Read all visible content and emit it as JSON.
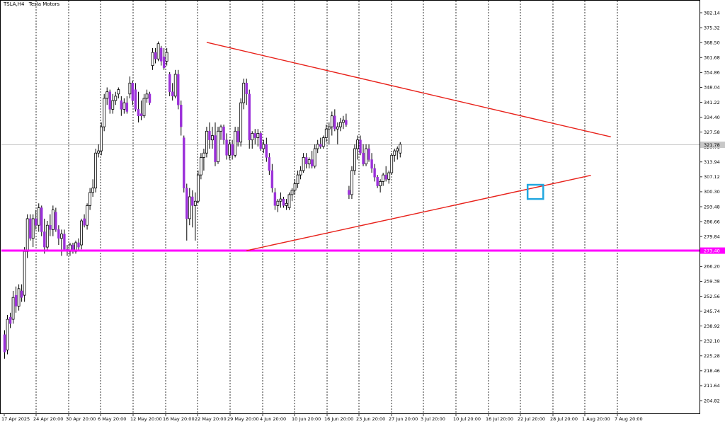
{
  "window": {
    "symbol": "TSLA,H4",
    "name": "Tesla Motors"
  },
  "colors": {
    "background": "#ffffff",
    "bull_body": "#ffffff",
    "bear_body": "#9b30d9",
    "wick": "#000000",
    "grid": "#000000",
    "trendline": "#e8211a",
    "support_line": "#ff00ff",
    "marker_box": "#22a7e0",
    "current_price_line": "#c0c0c0"
  },
  "chart_data": {
    "type": "candlestick",
    "title": "TSLA,H4  Tesla Motors",
    "x_tick_labels": [
      "17 Apr 2025",
      "24 Apr 20:00",
      "30 Apr 20:00",
      "6 May 20:00",
      "12 May 20:00",
      "16 May 20:00",
      "22 May 20:00",
      "29 May 20:00",
      "4 Jun 20:00",
      "10 Jun 20:00",
      "16 Jun 20:00",
      "23 Jun 20:00",
      "27 Jun 20:00",
      "3 Jul 20:00",
      "10 Jul 20:00",
      "16 Jul 20:00",
      "22 Jul 20:00",
      "28 Jul 20:00",
      "1 Aug 20:00",
      "7 Aug 20:00"
    ],
    "y_tick_labels": [
      "382.14",
      "375.32",
      "368.50",
      "361.68",
      "354.86",
      "348.04",
      "341.22",
      "334.40",
      "327.58",
      "320.76",
      "313.94",
      "307.12",
      "300.30",
      "293.48",
      "286.66",
      "279.84",
      "273.40",
      "266.20",
      "259.38",
      "252.56",
      "245.74",
      "238.92",
      "232.10",
      "225.28",
      "218.46",
      "211.64",
      "204.82"
    ],
    "ylim": [
      198.0,
      385.0
    ],
    "grid": "vertical-dotted",
    "current_price": 321.78,
    "current_price_label": "321.78",
    "support_level": 273.4,
    "support_label": "273.40",
    "candles": [
      {
        "o": 235,
        "h": 237,
        "l": 224,
        "c": 227
      },
      {
        "o": 228,
        "h": 244,
        "l": 226,
        "c": 242
      },
      {
        "o": 243,
        "h": 245,
        "l": 238,
        "c": 240
      },
      {
        "o": 242,
        "h": 255,
        "l": 240,
        "c": 252
      },
      {
        "o": 253,
        "h": 257,
        "l": 245,
        "c": 248
      },
      {
        "o": 248,
        "h": 258,
        "l": 246,
        "c": 256
      },
      {
        "o": 255,
        "h": 258,
        "l": 250,
        "c": 252
      },
      {
        "o": 253,
        "h": 275,
        "l": 250,
        "c": 273
      },
      {
        "o": 273,
        "h": 290,
        "l": 270,
        "c": 288
      },
      {
        "o": 288,
        "h": 290,
        "l": 278,
        "c": 279
      },
      {
        "o": 279,
        "h": 290,
        "l": 275,
        "c": 288
      },
      {
        "o": 288,
        "h": 292,
        "l": 283,
        "c": 285
      },
      {
        "o": 285,
        "h": 295,
        "l": 282,
        "c": 293
      },
      {
        "o": 293,
        "h": 294,
        "l": 280,
        "c": 282
      },
      {
        "o": 282,
        "h": 288,
        "l": 272,
        "c": 275
      },
      {
        "o": 275,
        "h": 287,
        "l": 273,
        "c": 285
      },
      {
        "o": 285,
        "h": 290,
        "l": 280,
        "c": 283
      },
      {
        "o": 283,
        "h": 294,
        "l": 280,
        "c": 292
      },
      {
        "o": 291,
        "h": 293,
        "l": 282,
        "c": 283
      },
      {
        "o": 283,
        "h": 285,
        "l": 276,
        "c": 279
      },
      {
        "o": 279,
        "h": 283,
        "l": 271,
        "c": 281
      },
      {
        "o": 281,
        "h": 283,
        "l": 274,
        "c": 274
      },
      {
        "o": 274,
        "h": 276,
        "l": 271,
        "c": 273
      },
      {
        "o": 273,
        "h": 277,
        "l": 271,
        "c": 276
      },
      {
        "o": 276,
        "h": 277,
        "l": 272,
        "c": 273
      },
      {
        "o": 273,
        "h": 278,
        "l": 272,
        "c": 277
      },
      {
        "o": 277,
        "h": 279,
        "l": 273,
        "c": 275
      },
      {
        "o": 276,
        "h": 288,
        "l": 274,
        "c": 287
      },
      {
        "o": 288,
        "h": 290,
        "l": 284,
        "c": 285
      },
      {
        "o": 285,
        "h": 295,
        "l": 283,
        "c": 294
      },
      {
        "o": 294,
        "h": 302,
        "l": 292,
        "c": 300
      },
      {
        "o": 300,
        "h": 306,
        "l": 298,
        "c": 302
      },
      {
        "o": 302,
        "h": 320,
        "l": 300,
        "c": 318
      },
      {
        "o": 318,
        "h": 322,
        "l": 316,
        "c": 319
      },
      {
        "o": 319,
        "h": 332,
        "l": 317,
        "c": 330
      },
      {
        "o": 330,
        "h": 345,
        "l": 328,
        "c": 343
      },
      {
        "o": 343,
        "h": 348,
        "l": 340,
        "c": 346
      },
      {
        "o": 346,
        "h": 347,
        "l": 336,
        "c": 338
      },
      {
        "o": 338,
        "h": 345,
        "l": 336,
        "c": 342
      },
      {
        "o": 342,
        "h": 346,
        "l": 340,
        "c": 344
      },
      {
        "o": 345,
        "h": 348,
        "l": 343,
        "c": 347
      },
      {
        "o": 342,
        "h": 344,
        "l": 335,
        "c": 338
      },
      {
        "o": 338,
        "h": 343,
        "l": 336,
        "c": 341
      },
      {
        "o": 341,
        "h": 344,
        "l": 336,
        "c": 337
      },
      {
        "o": 345,
        "h": 353,
        "l": 343,
        "c": 350
      },
      {
        "o": 350,
        "h": 351,
        "l": 340,
        "c": 342
      },
      {
        "o": 347,
        "h": 350,
        "l": 337,
        "c": 338
      },
      {
        "o": 338,
        "h": 346,
        "l": 332,
        "c": 335
      },
      {
        "o": 336,
        "h": 342,
        "l": 333,
        "c": 335
      },
      {
        "o": 335,
        "h": 345,
        "l": 334,
        "c": 343
      },
      {
        "o": 343,
        "h": 347,
        "l": 341,
        "c": 345
      },
      {
        "o": 345,
        "h": 346,
        "l": 340,
        "c": 341
      },
      {
        "o": 358,
        "h": 366,
        "l": 356,
        "c": 364
      },
      {
        "o": 364,
        "h": 366,
        "l": 359,
        "c": 361
      },
      {
        "o": 361,
        "h": 369,
        "l": 360,
        "c": 368
      },
      {
        "o": 366,
        "h": 367,
        "l": 358,
        "c": 360
      },
      {
        "o": 362,
        "h": 366,
        "l": 356,
        "c": 357
      },
      {
        "o": 360,
        "h": 366,
        "l": 358,
        "c": 364
      },
      {
        "o": 354,
        "h": 355,
        "l": 344,
        "c": 346
      },
      {
        "o": 346,
        "h": 350,
        "l": 342,
        "c": 344
      },
      {
        "o": 344,
        "h": 356,
        "l": 343,
        "c": 354
      },
      {
        "o": 354,
        "h": 356,
        "l": 338,
        "c": 340
      },
      {
        "o": 340,
        "h": 342,
        "l": 326,
        "c": 330
      },
      {
        "o": 325,
        "h": 326,
        "l": 300,
        "c": 302
      },
      {
        "o": 302,
        "h": 304,
        "l": 278,
        "c": 288
      },
      {
        "o": 288,
        "h": 302,
        "l": 285,
        "c": 298
      },
      {
        "o": 298,
        "h": 301,
        "l": 284,
        "c": 294
      },
      {
        "o": 294,
        "h": 300,
        "l": 278,
        "c": 296
      },
      {
        "o": 296,
        "h": 310,
        "l": 295,
        "c": 308
      },
      {
        "o": 308,
        "h": 318,
        "l": 306,
        "c": 316
      },
      {
        "o": 316,
        "h": 320,
        "l": 310,
        "c": 318
      },
      {
        "o": 318,
        "h": 330,
        "l": 316,
        "c": 328
      },
      {
        "o": 328,
        "h": 332,
        "l": 320,
        "c": 324
      },
      {
        "o": 324,
        "h": 330,
        "l": 320,
        "c": 326
      },
      {
        "o": 326,
        "h": 332,
        "l": 312,
        "c": 314
      },
      {
        "o": 314,
        "h": 330,
        "l": 313,
        "c": 328
      },
      {
        "o": 328,
        "h": 331,
        "l": 324,
        "c": 330
      },
      {
        "o": 330,
        "h": 331,
        "l": 322,
        "c": 324
      },
      {
        "o": 324,
        "h": 327,
        "l": 315,
        "c": 317
      },
      {
        "o": 317,
        "h": 324,
        "l": 315,
        "c": 322
      },
      {
        "o": 322,
        "h": 324,
        "l": 315,
        "c": 317
      },
      {
        "o": 317,
        "h": 330,
        "l": 316,
        "c": 328
      },
      {
        "o": 328,
        "h": 330,
        "l": 321,
        "c": 323
      },
      {
        "o": 323,
        "h": 343,
        "l": 321,
        "c": 341
      },
      {
        "o": 341,
        "h": 352,
        "l": 338,
        "c": 350
      },
      {
        "o": 350,
        "h": 352,
        "l": 340,
        "c": 345
      },
      {
        "o": 345,
        "h": 347,
        "l": 320,
        "c": 324
      },
      {
        "o": 324,
        "h": 328,
        "l": 320,
        "c": 327
      },
      {
        "o": 327,
        "h": 329,
        "l": 322,
        "c": 325
      },
      {
        "o": 325,
        "h": 329,
        "l": 321,
        "c": 327
      },
      {
        "o": 327,
        "h": 328,
        "l": 319,
        "c": 320
      },
      {
        "o": 320,
        "h": 324,
        "l": 318,
        "c": 322
      },
      {
        "o": 322,
        "h": 325,
        "l": 314,
        "c": 316
      },
      {
        "o": 316,
        "h": 318,
        "l": 308,
        "c": 310
      },
      {
        "o": 310,
        "h": 313,
        "l": 300,
        "c": 302
      },
      {
        "o": 300,
        "h": 302,
        "l": 292,
        "c": 294
      },
      {
        "o": 294,
        "h": 297,
        "l": 291,
        "c": 296
      },
      {
        "o": 296,
        "h": 300,
        "l": 293,
        "c": 297
      },
      {
        "o": 297,
        "h": 298,
        "l": 293,
        "c": 294
      },
      {
        "o": 294,
        "h": 297,
        "l": 292,
        "c": 295
      },
      {
        "o": 293,
        "h": 300,
        "l": 292,
        "c": 299
      },
      {
        "o": 299,
        "h": 302,
        "l": 296,
        "c": 301
      },
      {
        "o": 301,
        "h": 306,
        "l": 299,
        "c": 304
      },
      {
        "o": 304,
        "h": 310,
        "l": 302,
        "c": 308
      },
      {
        "o": 308,
        "h": 312,
        "l": 306,
        "c": 310
      },
      {
        "o": 310,
        "h": 318,
        "l": 309,
        "c": 316
      },
      {
        "o": 316,
        "h": 318,
        "l": 311,
        "c": 313
      },
      {
        "o": 313,
        "h": 316,
        "l": 311,
        "c": 315
      },
      {
        "o": 315,
        "h": 319,
        "l": 311,
        "c": 312
      },
      {
        "o": 312,
        "h": 322,
        "l": 311,
        "c": 320
      },
      {
        "o": 320,
        "h": 324,
        "l": 318,
        "c": 322
      },
      {
        "o": 322,
        "h": 325,
        "l": 320,
        "c": 321
      },
      {
        "o": 321,
        "h": 326,
        "l": 320,
        "c": 325
      },
      {
        "o": 325,
        "h": 331,
        "l": 323,
        "c": 329
      },
      {
        "o": 329,
        "h": 332,
        "l": 322,
        "c": 330
      },
      {
        "o": 330,
        "h": 337,
        "l": 326,
        "c": 335
      },
      {
        "o": 335,
        "h": 338,
        "l": 328,
        "c": 329
      },
      {
        "o": 329,
        "h": 332,
        "l": 322,
        "c": 330
      },
      {
        "o": 330,
        "h": 334,
        "l": 328,
        "c": 332
      },
      {
        "o": 332,
        "h": 335,
        "l": 329,
        "c": 333
      },
      {
        "o": 333,
        "h": 336,
        "l": 330,
        "c": 331
      },
      {
        "o": 301,
        "h": 303,
        "l": 297,
        "c": 299
      },
      {
        "o": 299,
        "h": 312,
        "l": 297,
        "c": 310
      },
      {
        "o": 310,
        "h": 322,
        "l": 308,
        "c": 320
      },
      {
        "o": 320,
        "h": 326,
        "l": 315,
        "c": 324
      },
      {
        "o": 324,
        "h": 326,
        "l": 317,
        "c": 318
      },
      {
        "o": 318,
        "h": 322,
        "l": 312,
        "c": 313
      },
      {
        "o": 313,
        "h": 322,
        "l": 312,
        "c": 320
      },
      {
        "o": 320,
        "h": 322,
        "l": 314,
        "c": 315
      },
      {
        "o": 315,
        "h": 318,
        "l": 309,
        "c": 311
      },
      {
        "o": 311,
        "h": 313,
        "l": 305,
        "c": 307
      },
      {
        "o": 307,
        "h": 308,
        "l": 302,
        "c": 303
      },
      {
        "o": 303,
        "h": 306,
        "l": 300,
        "c": 305
      },
      {
        "o": 305,
        "h": 309,
        "l": 303,
        "c": 308
      },
      {
        "o": 308,
        "h": 312,
        "l": 305,
        "c": 306
      },
      {
        "o": 306,
        "h": 310,
        "l": 304,
        "c": 309
      },
      {
        "o": 309,
        "h": 318,
        "l": 308,
        "c": 317
      },
      {
        "o": 317,
        "h": 320,
        "l": 314,
        "c": 319
      },
      {
        "o": 319,
        "h": 321,
        "l": 315,
        "c": 320
      },
      {
        "o": 318,
        "h": 323,
        "l": 316,
        "c": 322
      }
    ],
    "trendlines": [
      {
        "name": "upper-resistance",
        "from": {
          "candle": 71,
          "price": 368.6
        },
        "to": {
          "candle": 213,
          "price": 325.4
        }
      },
      {
        "name": "lower-support",
        "from": {
          "candle": 85,
          "price": 273.4
        },
        "to": {
          "candle": 206,
          "price": 307.8
        }
      }
    ],
    "marker_box": {
      "from_candle": 184,
      "to_candle": 189,
      "price_top": 303.5,
      "price_bottom": 297.0
    }
  }
}
